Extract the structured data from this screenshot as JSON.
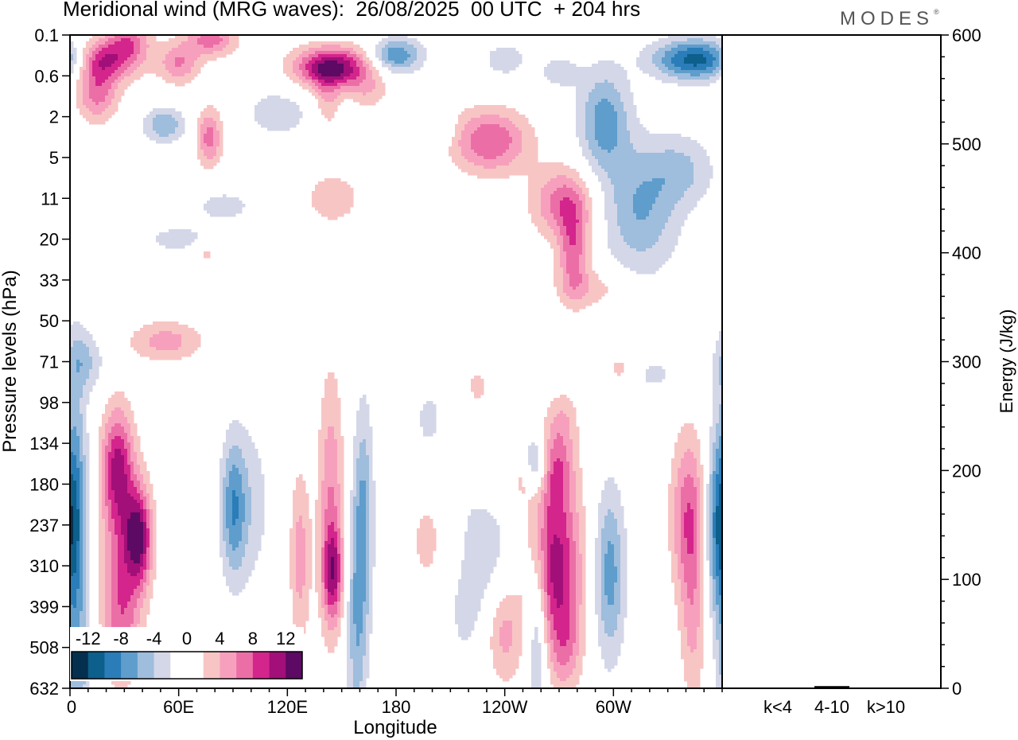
{
  "chart_data": {
    "type": "heatmap",
    "title": "Meridional wind (MRG waves):  26/08/2025  00 UTC  + 204 hrs",
    "xlabel": "Longitude",
    "ylabel": "Pressure levels (hPa)",
    "x_ticks": [
      "0",
      "60E",
      "120E",
      "180",
      "120W",
      "60W"
    ],
    "x_tick_degrees": [
      0,
      60,
      120,
      180,
      240,
      300
    ],
    "x_range_deg": [
      0,
      360
    ],
    "y_levels": [
      "0.1",
      "0.6",
      "2",
      "5",
      "11",
      "20",
      "33",
      "50",
      "71",
      "98",
      "134",
      "180",
      "237",
      "310",
      "399",
      "508",
      "632"
    ],
    "colorbar": {
      "labels": [
        "-12",
        "-8",
        "-4",
        "0",
        "4",
        "8",
        "12"
      ],
      "colors": [
        "#052f4f",
        "#0d5f8c",
        "#2a7db8",
        "#5e9dcc",
        "#9fbddc",
        "#d4d7e8",
        "#ffffff",
        "#ffffff",
        "#f8c5c5",
        "#f7a0bd",
        "#eb6fa6",
        "#d4258c",
        "#a20f78",
        "#5c0a63"
      ]
    },
    "energy_panel": {
      "ylabel": "Energy (J/kg)",
      "ylim": [
        0,
        600
      ],
      "y_ticks": [
        "0",
        "100",
        "200",
        "300",
        "400",
        "500",
        "600"
      ],
      "categories": [
        "k<4",
        "4-10",
        "k>10"
      ],
      "values": [
        0,
        2,
        0
      ]
    },
    "fields": {
      "positive": [
        {
          "lon": 15,
          "lev": 0.6,
          "w": 10,
          "h": 0.35,
          "amp": 8
        },
        {
          "lon": 15,
          "lev": 1.4,
          "w": 8,
          "h": 0.5,
          "amp": 7
        },
        {
          "lon": 33,
          "lev": 0.1,
          "w": 8,
          "h": 0.3,
          "amp": 5
        },
        {
          "lon": 30,
          "lev": 0.55,
          "w": 10,
          "h": 0.4,
          "amp": 5
        },
        {
          "lon": 60,
          "lev": 0.7,
          "w": 8,
          "h": 0.35,
          "amp": 6
        },
        {
          "lon": 78,
          "lev": 0.1,
          "w": 10,
          "h": 0.3,
          "amp": 7
        },
        {
          "lon": 77,
          "lev": 2.5,
          "w": 5,
          "h": 0.5,
          "amp": 7
        },
        {
          "lon": 145,
          "lev": 0.8,
          "w": 15,
          "h": 0.35,
          "amp": 13
        },
        {
          "lon": 142,
          "lev": 1.6,
          "w": 5,
          "h": 0.5,
          "amp": 4
        },
        {
          "lon": 165,
          "lev": 1.4,
          "w": 8,
          "h": 0.3,
          "amp": 3
        },
        {
          "lon": 145,
          "lev": 4.0,
          "w": 13,
          "h": 0.55,
          "amp": 3
        },
        {
          "lon": 232,
          "lev": 2.6,
          "w": 15,
          "h": 0.55,
          "amp": 8
        },
        {
          "lon": 272,
          "lev": 4.1,
          "w": 12,
          "h": 0.6,
          "amp": 7
        },
        {
          "lon": 278,
          "lev": 5.3,
          "w": 6,
          "h": 0.8,
          "amp": 7
        },
        {
          "lon": 288,
          "lev": 6.2,
          "w": 14,
          "h": 0.35,
          "amp": 3
        },
        {
          "lon": 53,
          "lev": 7.5,
          "w": 14,
          "h": 0.35,
          "amp": 5
        },
        {
          "lon": 75,
          "lev": 5.3,
          "w": 5,
          "h": 0.2,
          "amp": 3
        },
        {
          "lon": 305,
          "lev": 8.2,
          "w": 8,
          "h": 0.3,
          "amp": 3
        },
        {
          "lon": 26,
          "lev": 10.5,
          "w": 6,
          "h": 1.0,
          "amp": 9
        },
        {
          "lon": 30,
          "lev": 12.5,
          "w": 9,
          "h": 1.5,
          "amp": 6
        },
        {
          "lon": 38,
          "lev": 12.3,
          "w": 5,
          "h": 0.8,
          "amp": 10
        },
        {
          "lon": 28,
          "lev": 14.5,
          "w": 7,
          "h": 1.0,
          "amp": 5
        },
        {
          "lon": 127,
          "lev": 12.8,
          "w": 4,
          "h": 1.5,
          "amp": 5
        },
        {
          "lon": 144,
          "lev": 11.5,
          "w": 5,
          "h": 2.2,
          "amp": 6
        },
        {
          "lon": 145,
          "lev": 13.2,
          "w": 4,
          "h": 0.8,
          "amp": 8
        },
        {
          "lon": 197,
          "lev": 12.4,
          "w": 6,
          "h": 0.7,
          "amp": 3
        },
        {
          "lon": 214,
          "lev": 12.7,
          "w": 4,
          "h": 0.8,
          "amp": 3
        },
        {
          "lon": 225,
          "lev": 8.6,
          "w": 4,
          "h": 0.3,
          "amp": 3
        },
        {
          "lon": 250,
          "lev": 10.8,
          "w": 5,
          "h": 0.5,
          "amp": 3
        },
        {
          "lon": 240,
          "lev": 14.6,
          "w": 7,
          "h": 0.9,
          "amp": 5
        },
        {
          "lon": 268,
          "lev": 13.0,
          "w": 10,
          "h": 1.5,
          "amp": 11
        },
        {
          "lon": 268,
          "lev": 10.6,
          "w": 7,
          "h": 0.7,
          "amp": 6
        },
        {
          "lon": 274,
          "lev": 15.0,
          "w": 6,
          "h": 0.8,
          "amp": 4
        },
        {
          "lon": 342,
          "lev": 11.8,
          "w": 7,
          "h": 1.4,
          "amp": 8
        },
        {
          "lon": 344,
          "lev": 14.5,
          "w": 5,
          "h": 1.5,
          "amp": 4
        },
        {
          "lon": 272,
          "lev": 9.4,
          "w": 6,
          "h": 0.5,
          "amp": 3
        }
      ],
      "negative": [
        {
          "lon": 180,
          "lev": 0.5,
          "w": 10,
          "h": 0.3,
          "amp": 8
        },
        {
          "lon": 346,
          "lev": 0.6,
          "w": 17,
          "h": 0.35,
          "amp": 11
        },
        {
          "lon": 295,
          "lev": 2.1,
          "w": 10,
          "h": 0.9,
          "amp": 7
        },
        {
          "lon": 315,
          "lev": 4.3,
          "w": 15,
          "h": 1.1,
          "amp": 6
        },
        {
          "lon": 52,
          "lev": 2.2,
          "w": 8,
          "h": 0.3,
          "amp": 6
        },
        {
          "lon": 240,
          "lev": 0.6,
          "w": 10,
          "h": 0.35,
          "amp": 3
        },
        {
          "lon": 270,
          "lev": 0.9,
          "w": 8,
          "h": 0.3,
          "amp": 3
        },
        {
          "lon": 338,
          "lev": 3.3,
          "w": 13,
          "h": 0.6,
          "amp": 4
        },
        {
          "lon": 85,
          "lev": 4.2,
          "w": 12,
          "h": 0.3,
          "amp": 3
        },
        {
          "lon": 60,
          "lev": 5.0,
          "w": 14,
          "h": 0.25,
          "amp": 3
        },
        {
          "lon": 115,
          "lev": 1.9,
          "w": 15,
          "h": 0.5,
          "amp": 3
        },
        {
          "lon": 8,
          "lev": 8.0,
          "w": 8,
          "h": 0.5,
          "amp": 4
        },
        {
          "lon": 3,
          "lev": 12.0,
          "w": 5,
          "h": 3.0,
          "amp": 6
        },
        {
          "lon": 90,
          "lev": 11.6,
          "w": 5,
          "h": 1.2,
          "amp": 7
        },
        {
          "lon": 100,
          "lev": 11.5,
          "w": 8,
          "h": 1.5,
          "amp": 3
        },
        {
          "lon": 162,
          "lev": 11.8,
          "w": 4,
          "h": 2.0,
          "amp": 6
        },
        {
          "lon": 158,
          "lev": 14.5,
          "w": 4,
          "h": 2.0,
          "amp": 5
        },
        {
          "lon": 198,
          "lev": 9.4,
          "w": 5,
          "h": 0.5,
          "amp": 3
        },
        {
          "lon": 217,
          "lev": 13.5,
          "w": 6,
          "h": 1.2,
          "amp": 3
        },
        {
          "lon": 230,
          "lev": 12.8,
          "w": 12,
          "h": 1.2,
          "amp": 3
        },
        {
          "lon": 257,
          "lev": 10.5,
          "w": 5,
          "h": 0.5,
          "amp": 7
        },
        {
          "lon": 258,
          "lev": 14.5,
          "w": 4,
          "h": 1.5,
          "amp": 6
        },
        {
          "lon": 298,
          "lev": 13.2,
          "w": 6,
          "h": 1.5,
          "amp": 7
        },
        {
          "lon": 358,
          "lev": 12.0,
          "w": 6,
          "h": 1.5,
          "amp": 8
        },
        {
          "lon": 5,
          "lev": 15.5,
          "w": 5,
          "h": 1.0,
          "amp": 3
        },
        {
          "lon": 320,
          "lev": 8.3,
          "w": 10,
          "h": 0.3,
          "amp": 3
        },
        {
          "lon": 205,
          "lev": 2.3,
          "w": 5,
          "h": 0.3,
          "amp": 3
        }
      ]
    }
  }
}
